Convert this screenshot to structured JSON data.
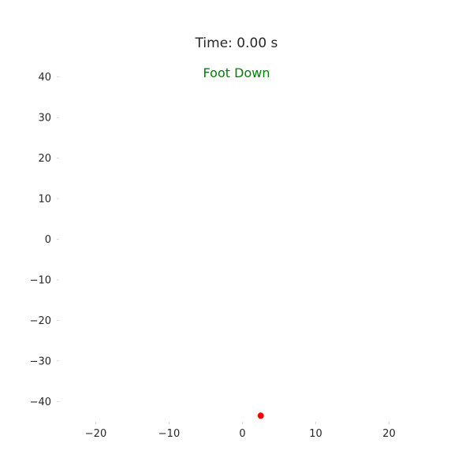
{
  "figure": {
    "title": "Time: 0.00 s",
    "status": "Foot Down"
  },
  "colors": {
    "status_text": "#008000",
    "point": "#ff0000",
    "tick_text": "#262626"
  },
  "chart_data": {
    "type": "scatter",
    "title": "Time: 0.00 s",
    "annotations": [
      "Foot Down"
    ],
    "xlabel": "",
    "ylabel": "",
    "xlim": [
      -25,
      25
    ],
    "ylim": [
      -45,
      45
    ],
    "xticks": [
      -20,
      -10,
      0,
      10,
      20
    ],
    "xtick_labels": [
      "−20",
      "−10",
      "0",
      "10",
      "20"
    ],
    "yticks": [
      40,
      30,
      20,
      10,
      0,
      -10,
      -20,
      -30,
      -40
    ],
    "ytick_labels": [
      "40",
      "30",
      "20",
      "10",
      "0",
      "−10",
      "−20",
      "−30",
      "−40"
    ],
    "grid": false,
    "legend": "none",
    "series": [
      {
        "x": [
          2.5
        ],
        "y": [
          -43.5
        ],
        "color": "#ff0000"
      }
    ]
  }
}
